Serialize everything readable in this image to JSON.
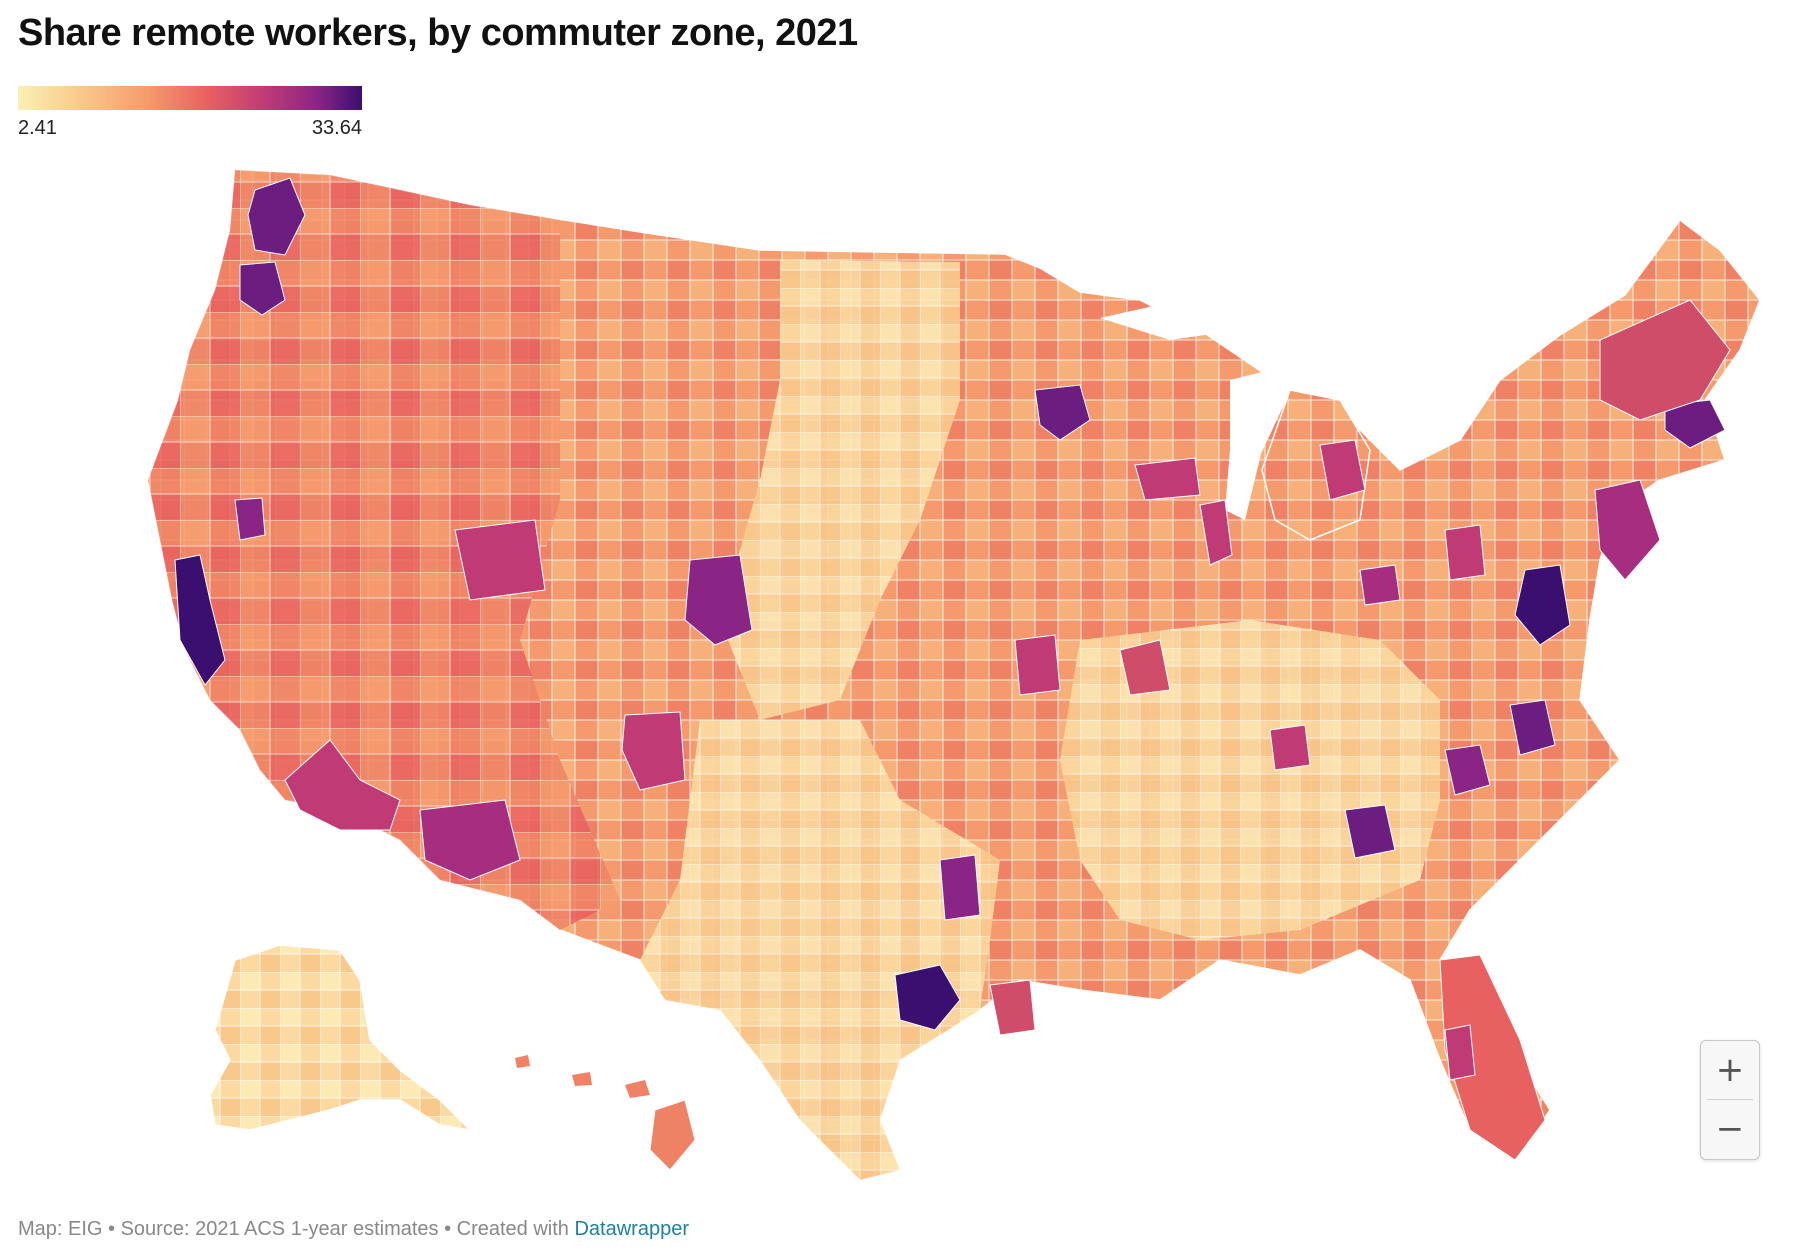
{
  "title": "Share remote workers, by commuter zone, 2021",
  "legend": {
    "min_label": "2.41",
    "max_label": "33.64",
    "colors": [
      "#fcf0b4",
      "#f9c98c",
      "#f59a6c",
      "#e8605f",
      "#c03a76",
      "#8a2585",
      "#3b0f70"
    ]
  },
  "zoom": {
    "in_label": "+",
    "out_label": "−"
  },
  "footer": {
    "text": "Map: EIG • Source: 2021 ACS 1-year estimates • Created with ",
    "link": "Datawrapper"
  }
}
